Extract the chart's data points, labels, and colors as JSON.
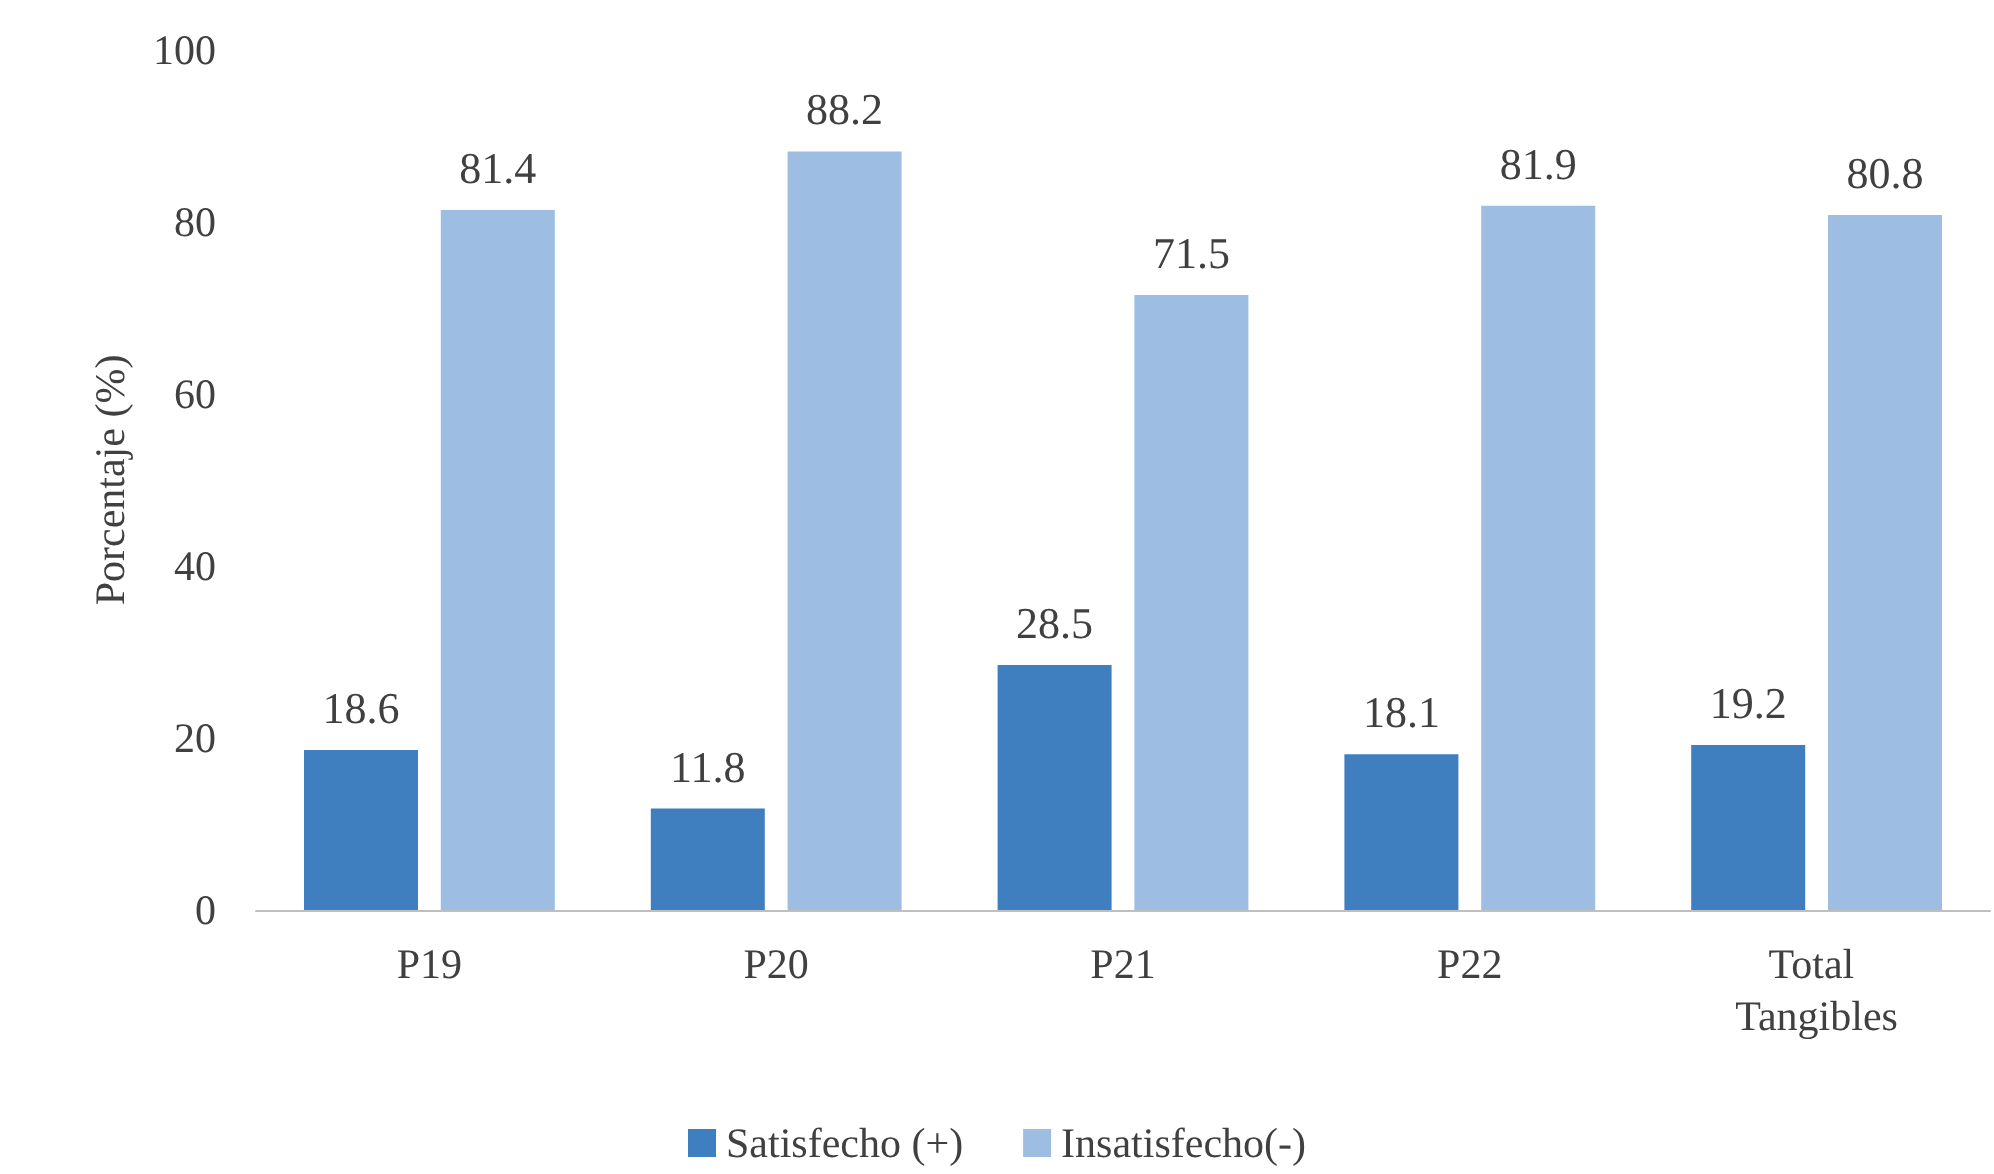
{
  "chart_data": {
    "type": "bar",
    "ylabel": "Porcentaje (%)",
    "categories": [
      "P19",
      "P20",
      "P21",
      "P22",
      "Total Tangibles"
    ],
    "series": [
      {
        "name": "Satisfecho (+)",
        "color": "#3f7fbf",
        "values": [
          18.6,
          11.8,
          28.5,
          18.1,
          19.2
        ]
      },
      {
        "name": "Insatisfecho(-)",
        "color": "#9dbde3",
        "values": [
          81.4,
          88.2,
          71.5,
          81.9,
          80.8
        ]
      }
    ],
    "ylim": [
      0,
      100
    ],
    "yticks": [
      0,
      20,
      40,
      60,
      80,
      100
    ],
    "grid": false,
    "legend": "bottom",
    "data_labels": true
  }
}
